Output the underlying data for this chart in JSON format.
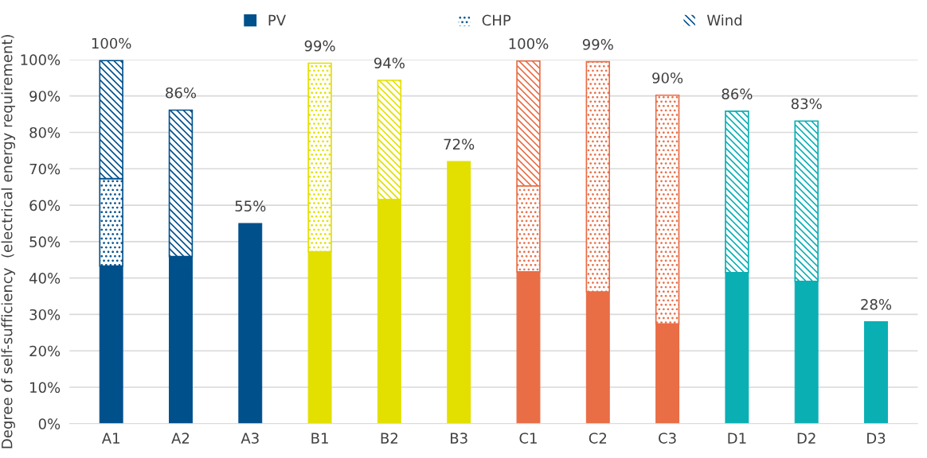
{
  "chart_data": {
    "type": "bar",
    "stacked": true,
    "ylabel": "Degree of self-sufficiency  (electrical energy requirement)",
    "categories": [
      "A1",
      "A2",
      "A3",
      "B1",
      "B2",
      "B3",
      "C1",
      "C2",
      "C3",
      "D1",
      "D2",
      "D3"
    ],
    "series": [
      {
        "name": "PV",
        "colors": [
          "#00508c",
          "#00508c",
          "#00508c",
          "#e3e000",
          "#e3e000",
          "#e3e000",
          "#e96d45",
          "#e96d45",
          "#e96d45",
          "#0aafb4",
          "#0aafb4",
          "#0aafb4"
        ],
        "values": [
          43.3,
          45.9,
          55,
          47.2,
          61.6,
          72,
          41.7,
          36.2,
          27.4,
          41.5,
          39.1,
          28
        ]
      },
      {
        "name": "CHP",
        "colors": [
          "#00508c",
          "#00508c",
          "#00508c",
          "#e3e000",
          "#e3e000",
          "#e3e000",
          "#e96d45",
          "#e96d45",
          "#e96d45",
          "#0aafb4",
          "#0aafb4",
          "#0aafb4"
        ],
        "values": [
          24.0,
          null,
          null,
          51.8,
          null,
          null,
          23.6,
          63.2,
          62.8,
          null,
          null,
          null
        ]
      },
      {
        "name": "Wind",
        "colors": [
          "#00508c",
          "#00508c",
          "#00508c",
          "#e3e000",
          "#e3e000",
          "#e3e000",
          "#e96d45",
          "#e96d45",
          "#e96d45",
          "#0aafb4",
          "#0aafb4",
          "#0aafb4"
        ],
        "values": [
          32.4,
          40.2,
          null,
          null,
          32.7,
          null,
          34.3,
          null,
          null,
          44.3,
          44.0,
          null
        ]
      }
    ],
    "totals": [
      "100%",
      "86%",
      "55%",
      "99%",
      "94%",
      "72%",
      "100%",
      "99%",
      "90%",
      "86%",
      "83%",
      "28%"
    ],
    "ylim": [
      0,
      100
    ],
    "yticks": [
      {
        "value": 0,
        "label": "0%"
      },
      {
        "value": 10,
        "label": "10%"
      },
      {
        "value": 20,
        "label": "20%"
      },
      {
        "value": 30,
        "label": "30%"
      },
      {
        "value": 40,
        "label": "40%"
      },
      {
        "value": 50,
        "label": "50%"
      },
      {
        "value": 60,
        "label": "60%"
      },
      {
        "value": 70,
        "label": "70%"
      },
      {
        "value": 80,
        "label": "80%"
      },
      {
        "value": 90,
        "label": "90%"
      },
      {
        "value": 100,
        "label": "100%"
      }
    ],
    "grid": "y",
    "legend": "top"
  }
}
